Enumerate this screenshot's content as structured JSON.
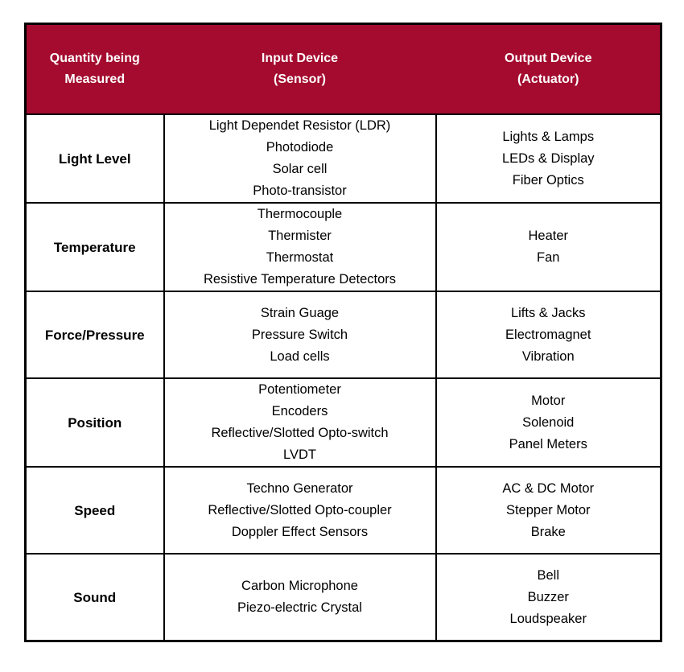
{
  "table": {
    "header_bg": "#A40B2F",
    "header_text_color": "#FFFFFF",
    "border_color": "#000000",
    "body_text_color": "#000000",
    "columns": [
      {
        "id": "quantity",
        "label": [
          "Quantity being",
          "Measured"
        ]
      },
      {
        "id": "sensor",
        "label": [
          "Input Device",
          "(Sensor)"
        ]
      },
      {
        "id": "actuator",
        "label": [
          "Output Device",
          "(Actuator)"
        ]
      }
    ],
    "rows": [
      {
        "quantity": "Light Level",
        "sensors": [
          "Light Dependet Resistor (LDR)",
          "Photodiode",
          "Solar cell",
          "Photo-transistor"
        ],
        "actuators": [
          "Lights & Lamps",
          "LEDs & Display",
          "Fiber Optics"
        ]
      },
      {
        "quantity": "Temperature",
        "sensors": [
          "Thermocouple",
          "Thermister",
          "Thermostat",
          "Resistive Temperature Detectors"
        ],
        "actuators": [
          "Heater",
          "Fan"
        ]
      },
      {
        "quantity": "Force/Pressure",
        "sensors": [
          "Strain Guage",
          "Pressure Switch",
          "Load cells"
        ],
        "actuators": [
          "Lifts & Jacks",
          "Electromagnet",
          "Vibration"
        ]
      },
      {
        "quantity": "Position",
        "sensors": [
          "Potentiometer",
          "Encoders",
          "Reflective/Slotted Opto-switch",
          "LVDT"
        ],
        "actuators": [
          "Motor",
          "Solenoid",
          "Panel Meters"
        ]
      },
      {
        "quantity": "Speed",
        "sensors": [
          "Techno Generator",
          "Reflective/Slotted Opto-coupler",
          "Doppler Effect Sensors"
        ],
        "actuators": [
          "AC & DC Motor",
          "Stepper Motor",
          "Brake"
        ]
      },
      {
        "quantity": "Sound",
        "sensors": [
          "Carbon Microphone",
          "Piezo-electric Crystal"
        ],
        "actuators": [
          "Bell",
          "Buzzer",
          "Loudspeaker"
        ]
      }
    ]
  },
  "chart_data": {
    "type": "table",
    "title": "",
    "legend": false,
    "columns": [
      "Quantity being Measured",
      "Input Device (Sensor)",
      "Output Device (Actuator)"
    ],
    "rows": [
      [
        "Light Level",
        "Light Dependet Resistor (LDR)\nPhotodiode\nSolar cell\nPhoto-transistor",
        "Lights & Lamps\nLEDs & Display\nFiber Optics"
      ],
      [
        "Temperature",
        "Thermocouple\nThermister\nThermostat\nResistive Temperature Detectors",
        "Heater\nFan"
      ],
      [
        "Force/Pressure",
        "Strain Guage\nPressure Switch\nLoad cells",
        "Lifts & Jacks\nElectromagnet\nVibration"
      ],
      [
        "Position",
        "Potentiometer\nEncoders\nReflective/Slotted Opto-switch\nLVDT",
        "Motor\nSolenoid\nPanel Meters"
      ],
      [
        "Speed",
        "Techno Generator\nReflective/Slotted Opto-coupler\nDoppler Effect Sensors",
        "AC & DC Motor\nStepper Motor\nBrake"
      ],
      [
        "Sound",
        "Carbon Microphone\nPiezo-electric Crystal",
        "Bell\nBuzzer\nLoudspeaker"
      ]
    ],
    "layout": {
      "header_background": "#A40B2F",
      "header_text_color": "#FFFFFF",
      "grid": true,
      "cell_alignment": "center"
    }
  }
}
